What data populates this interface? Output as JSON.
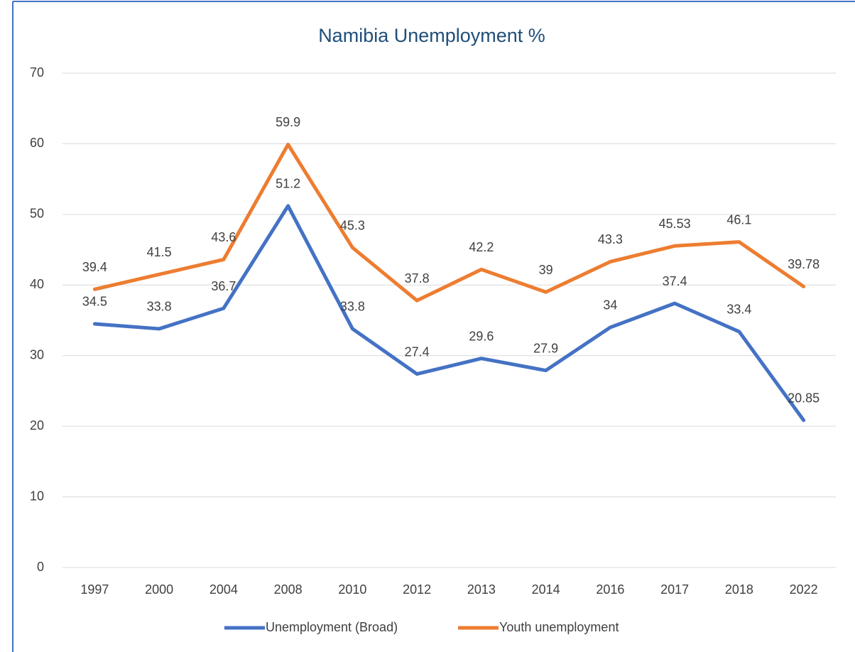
{
  "chart_data": {
    "type": "line",
    "title": "Namibia Unemployment %",
    "categories": [
      "1997",
      "2000",
      "2004",
      "2008",
      "2010",
      "2012",
      "2013",
      "2014",
      "2016",
      "2017",
      "2018",
      "2022"
    ],
    "series": [
      {
        "name": "Unemployment (Broad)",
        "color": "#4472c4",
        "values": [
          34.5,
          33.8,
          36.7,
          51.2,
          33.8,
          27.4,
          29.6,
          27.9,
          34,
          37.4,
          33.4,
          20.85
        ]
      },
      {
        "name": "Youth unemployment",
        "color": "#ed7d31",
        "values": [
          39.4,
          41.5,
          43.6,
          59.9,
          45.3,
          37.8,
          42.2,
          39,
          43.3,
          45.53,
          46.1,
          39.78
        ]
      }
    ],
    "ylim": [
      0,
      70
    ],
    "yticks": [
      0,
      10,
      20,
      30,
      40,
      50,
      60,
      70
    ],
    "grid": true,
    "legend": "bottom"
  }
}
